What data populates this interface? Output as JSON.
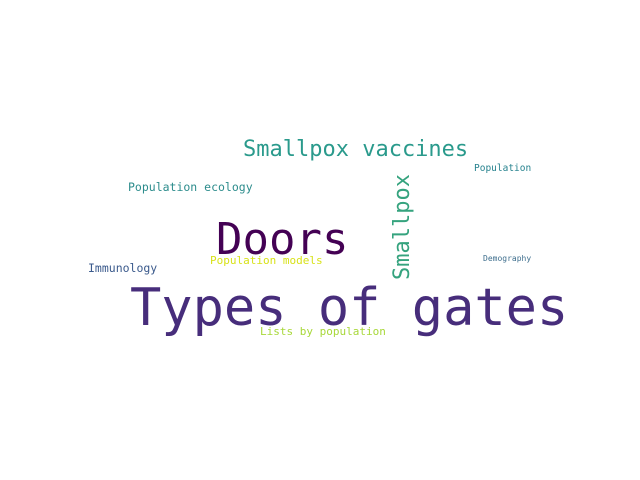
{
  "words": [
    {
      "text": "Types of gates",
      "color": "#472d7b",
      "weight": 1.0
    },
    {
      "text": "Doors",
      "color": "#440154",
      "weight": 0.85
    },
    {
      "text": "Smallpox vaccines",
      "color": "#2a9a8c",
      "weight": 0.55
    },
    {
      "text": "Smallpox",
      "color": "#35a37e",
      "weight": 0.55,
      "orientation": "vertical"
    },
    {
      "text": "Population ecology",
      "color": "#2c8c8c",
      "weight": 0.3
    },
    {
      "text": "Population",
      "color": "#26828e",
      "weight": 0.25
    },
    {
      "text": "Immunology",
      "color": "#3b5a8c",
      "weight": 0.3
    },
    {
      "text": "Population models",
      "color": "#d8e219",
      "weight": 0.3
    },
    {
      "text": "Demography",
      "color": "#3f6f8e",
      "weight": 0.2
    },
    {
      "text": "Lists by population",
      "color": "#a8d83a",
      "weight": 0.3
    }
  ]
}
